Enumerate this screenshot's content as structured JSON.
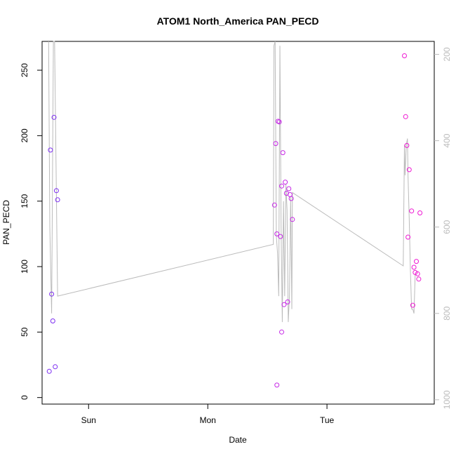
{
  "chart_data": {
    "type": "scatter",
    "title": "ATOM1 North_America PAN_PECD",
    "xlabel": "Date",
    "ylabel": "PAN_PECD",
    "x_ticks": [
      "Sun",
      "Mon",
      "Tue"
    ],
    "x_tick_days": [
      1,
      2,
      3
    ],
    "xlim_days": [
      0.61,
      3.9
    ],
    "y_ticks": [
      0,
      50,
      100,
      150,
      200,
      250
    ],
    "ylim": [
      -5,
      272
    ],
    "y2_ticks": [
      200,
      400,
      600,
      800,
      1000
    ],
    "y2lim": [
      1010,
      170
    ],
    "y2_reversed": true,
    "grid": false,
    "colors": {
      "line": "#bbbbbb",
      "axis": "#000000",
      "right_axis": "#bbbbbb"
    },
    "points": [
      {
        "x": 0.67,
        "y": 20,
        "color": "#7c2cf2"
      },
      {
        "x": 0.68,
        "y": 189,
        "color": "#7c2cf2"
      },
      {
        "x": 0.69,
        "y": 79,
        "color": "#7c2cf2"
      },
      {
        "x": 0.7,
        "y": 58.5,
        "color": "#7c2cf2"
      },
      {
        "x": 0.71,
        "y": 214,
        "color": "#7c2cf2"
      },
      {
        "x": 0.72,
        "y": 23.5,
        "color": "#7c2cf2"
      },
      {
        "x": 0.73,
        "y": 158,
        "color": "#7c2cf2"
      },
      {
        "x": 0.74,
        "y": 151,
        "color": "#7c2cf2"
      },
      {
        "x": 2.56,
        "y": 147,
        "color": "#c628e6"
      },
      {
        "x": 2.57,
        "y": 194,
        "color": "#c628e6"
      },
      {
        "x": 2.58,
        "y": 9.5,
        "color": "#c628e6"
      },
      {
        "x": 2.58,
        "y": 125,
        "color": "#c628e6"
      },
      {
        "x": 2.59,
        "y": 211,
        "color": "#c628e6"
      },
      {
        "x": 2.6,
        "y": 210.5,
        "color": "#c628e6"
      },
      {
        "x": 2.61,
        "y": 123,
        "color": "#c628e6"
      },
      {
        "x": 2.62,
        "y": 161.5,
        "color": "#c628e6"
      },
      {
        "x": 2.62,
        "y": 50,
        "color": "#c628e6"
      },
      {
        "x": 2.63,
        "y": 187,
        "color": "#c628e6"
      },
      {
        "x": 2.64,
        "y": 71,
        "color": "#c628e6"
      },
      {
        "x": 2.65,
        "y": 164.5,
        "color": "#c628e6"
      },
      {
        "x": 2.66,
        "y": 156,
        "color": "#c628e6"
      },
      {
        "x": 2.67,
        "y": 73,
        "color": "#c628e6"
      },
      {
        "x": 2.68,
        "y": 159.5,
        "color": "#c628e6"
      },
      {
        "x": 2.69,
        "y": 155,
        "color": "#c628e6"
      },
      {
        "x": 2.7,
        "y": 152,
        "color": "#c628e6"
      },
      {
        "x": 2.71,
        "y": 136,
        "color": "#c628e6"
      },
      {
        "x": 3.65,
        "y": 261,
        "color": "#ee18d2"
      },
      {
        "x": 3.66,
        "y": 214.5,
        "color": "#ee18d2"
      },
      {
        "x": 3.67,
        "y": 192.5,
        "color": "#ee18d2"
      },
      {
        "x": 3.68,
        "y": 122.5,
        "color": "#ee18d2"
      },
      {
        "x": 3.69,
        "y": 174,
        "color": "#ee18d2"
      },
      {
        "x": 3.71,
        "y": 142.5,
        "color": "#ee18d2"
      },
      {
        "x": 3.72,
        "y": 70.5,
        "color": "#ee18d2"
      },
      {
        "x": 3.73,
        "y": 99.5,
        "color": "#ee18d2"
      },
      {
        "x": 3.74,
        "y": 95.5,
        "color": "#ee18d2"
      },
      {
        "x": 3.75,
        "y": 104,
        "color": "#ee18d2"
      },
      {
        "x": 3.76,
        "y": 94.5,
        "color": "#ee18d2"
      },
      {
        "x": 3.77,
        "y": 90.5,
        "color": "#ee18d2"
      },
      {
        "x": 3.78,
        "y": 141,
        "color": "#ee18d2"
      }
    ],
    "line": [
      [
        0.665,
        170
      ],
      [
        0.675,
        600
      ],
      [
        0.69,
        800
      ],
      [
        0.705,
        170
      ],
      [
        0.715,
        170
      ],
      [
        0.74,
        760
      ],
      [
        2.55,
        640
      ],
      [
        2.555,
        180
      ],
      [
        2.565,
        170
      ],
      [
        2.575,
        620
      ],
      [
        2.585,
        660
      ],
      [
        2.595,
        760
      ],
      [
        2.605,
        180
      ],
      [
        2.615,
        600
      ],
      [
        2.625,
        820
      ],
      [
        2.635,
        540
      ],
      [
        2.645,
        760
      ],
      [
        2.655,
        500
      ],
      [
        2.665,
        560
      ],
      [
        2.675,
        820
      ],
      [
        2.685,
        760
      ],
      [
        2.695,
        530
      ],
      [
        2.705,
        790
      ],
      [
        2.71,
        520
      ],
      [
        3.64,
        690
      ],
      [
        3.65,
        410
      ],
      [
        3.655,
        480
      ],
      [
        3.665,
        410
      ],
      [
        3.675,
        395
      ],
      [
        3.68,
        480
      ],
      [
        3.69,
        580
      ],
      [
        3.7,
        700
      ],
      [
        3.71,
        790
      ],
      [
        3.72,
        790
      ],
      [
        3.73,
        800
      ],
      [
        3.74,
        710
      ]
    ]
  }
}
